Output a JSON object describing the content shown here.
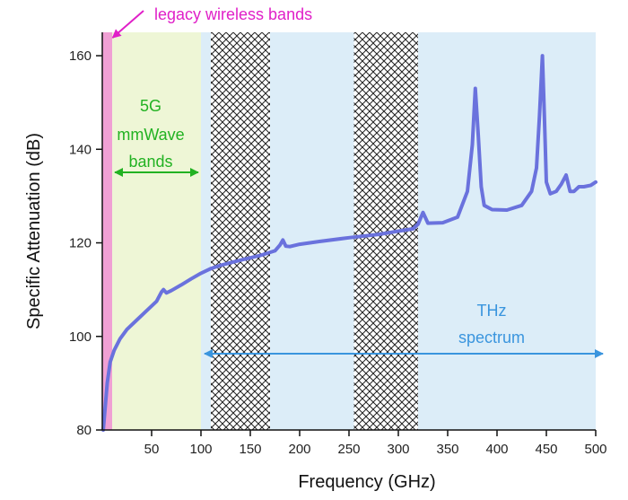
{
  "chart_data": {
    "type": "line",
    "xlabel": "Frequency (GHz)",
    "ylabel": "Specific Attenuation (dB)",
    "xlim": [
      0,
      500
    ],
    "ylim": [
      80,
      165
    ],
    "xticks": [
      50,
      100,
      150,
      200,
      250,
      300,
      350,
      400,
      450,
      500
    ],
    "yticks": [
      80,
      100,
      120,
      140,
      160
    ],
    "grid": false,
    "series": [
      {
        "color": "#6a72dd",
        "x": [
          1,
          3,
          5,
          8,
          12,
          18,
          25,
          35,
          45,
          55,
          60,
          62,
          65,
          70,
          80,
          90,
          100,
          110,
          120,
          140,
          160,
          175,
          180,
          183,
          186,
          190,
          200,
          220,
          250,
          280,
          300,
          315,
          320,
          325,
          330,
          345,
          360,
          370,
          375,
          378,
          381,
          384,
          387,
          395,
          410,
          425,
          435,
          440,
          443,
          446,
          448,
          450,
          454,
          460,
          465,
          470,
          474,
          478,
          483,
          488,
          495,
          500
        ],
        "values": [
          80,
          85,
          90,
          94.5,
          97,
          99.5,
          101.5,
          103.5,
          105.5,
          107.5,
          109.5,
          110,
          109.3,
          109.8,
          111,
          112.3,
          113.5,
          114.5,
          115.2,
          116.3,
          117.3,
          118.3,
          119.5,
          120.6,
          119.3,
          119.2,
          119.7,
          120.3,
          121.1,
          121.8,
          122.5,
          123,
          124,
          126.5,
          124.2,
          124.3,
          125.5,
          131,
          141,
          153,
          143,
          132,
          128,
          127.1,
          127,
          128,
          131,
          136,
          147,
          160,
          147,
          133,
          130.5,
          131,
          132.5,
          134.5,
          131,
          131,
          132,
          132,
          132.3,
          133
        ]
      }
    ],
    "regions": [
      {
        "xmin": 0,
        "xmax": 10,
        "color": "#f0a0d4",
        "label": "legacy wireless bands",
        "label_color": "#e020c8"
      },
      {
        "xmin": 10,
        "xmax": 100,
        "color": "#eef6d6",
        "label_lines": [
          "5G",
          "mmWave",
          "bands"
        ],
        "label_color": "#22b222"
      },
      {
        "xmin": 100,
        "xmax": 500,
        "color": "#dcedf8",
        "label_lines": [
          "THz",
          "spectrum"
        ],
        "label_color": "#3a95de"
      }
    ],
    "hatched_regions": [
      [
        110,
        170
      ],
      [
        255,
        320
      ]
    ]
  }
}
